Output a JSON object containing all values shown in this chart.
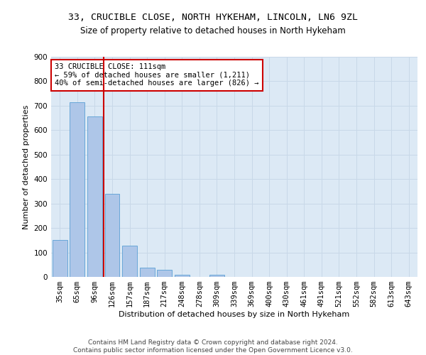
{
  "title1": "33, CRUCIBLE CLOSE, NORTH HYKEHAM, LINCOLN, LN6 9ZL",
  "title2": "Size of property relative to detached houses in North Hykeham",
  "xlabel": "Distribution of detached houses by size in North Hykeham",
  "ylabel": "Number of detached properties",
  "categories": [
    "35sqm",
    "65sqm",
    "96sqm",
    "126sqm",
    "157sqm",
    "187sqm",
    "217sqm",
    "248sqm",
    "278sqm",
    "309sqm",
    "339sqm",
    "369sqm",
    "400sqm",
    "430sqm",
    "461sqm",
    "491sqm",
    "521sqm",
    "552sqm",
    "582sqm",
    "613sqm",
    "643sqm"
  ],
  "values": [
    150,
    715,
    655,
    340,
    128,
    38,
    28,
    10,
    0,
    8,
    0,
    0,
    0,
    0,
    0,
    0,
    0,
    0,
    0,
    0,
    0
  ],
  "bar_color": "#aec6e8",
  "bar_edge_color": "#5a9fd4",
  "grid_color": "#c8d8e8",
  "background_color": "#dce9f5",
  "vline_x": 2.5,
  "vline_color": "#cc0000",
  "annotation_text": "33 CRUCIBLE CLOSE: 111sqm\n← 59% of detached houses are smaller (1,211)\n40% of semi-detached houses are larger (826) →",
  "annotation_box_color": "#ffffff",
  "annotation_box_edge": "#cc0000",
  "ylim": [
    0,
    900
  ],
  "yticks": [
    0,
    100,
    200,
    300,
    400,
    500,
    600,
    700,
    800,
    900
  ],
  "footer": "Contains HM Land Registry data © Crown copyright and database right 2024.\nContains public sector information licensed under the Open Government Licence v3.0.",
  "title1_fontsize": 9.5,
  "title2_fontsize": 8.5,
  "xlabel_fontsize": 8,
  "ylabel_fontsize": 8,
  "tick_fontsize": 7.5,
  "annotation_fontsize": 7.5,
  "footer_fontsize": 6.5
}
